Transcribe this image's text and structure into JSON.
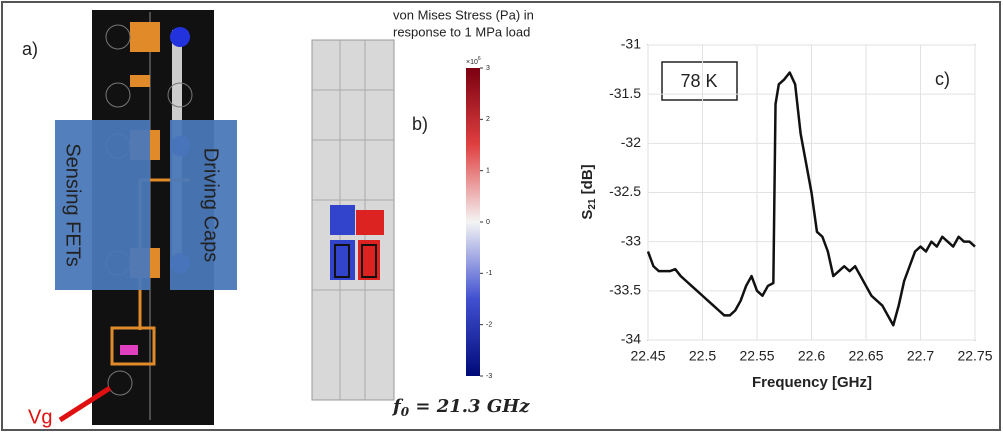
{
  "panel_a": {
    "label": "a)",
    "left_block": "Sensing FETs",
    "right_block": "Driving Caps",
    "pin": "Vg"
  },
  "panel_b": {
    "label": "b)",
    "title": [
      "von Mises Stress (Pa) in",
      "response to 1 MPa load"
    ],
    "formula": [
      "f",
      "0",
      " = 21.3 GHz"
    ],
    "colorbar": {
      "exponent": [
        "×10",
        "6"
      ],
      "lim": [
        -3,
        3
      ],
      "ticks": [
        3,
        2,
        1,
        0,
        -1,
        -2,
        -3
      ]
    }
  },
  "chart_data": {
    "type": "line",
    "panel_label": "c)",
    "annotation": "78 K",
    "x_label": "Frequency [GHz]",
    "y_label": [
      "S",
      "21",
      " [dB]"
    ],
    "xlim": [
      22.45,
      22.75
    ],
    "xticks": [
      22.45,
      22.5,
      22.55,
      22.6,
      22.65,
      22.7,
      22.75
    ],
    "ylim": [
      -34,
      -31
    ],
    "yticks": [
      -31,
      -31.5,
      -32,
      -32.5,
      -33,
      -33.5,
      -34
    ],
    "grid": true,
    "series": [
      {
        "color": "#111111",
        "x": [
          22.45,
          22.455,
          22.46,
          22.47,
          22.475,
          22.48,
          22.485,
          22.49,
          22.495,
          22.5,
          22.505,
          22.51,
          22.515,
          22.52,
          22.525,
          22.53,
          22.535,
          22.54,
          22.545,
          22.55,
          22.555,
          22.56,
          22.565,
          22.567,
          22.57,
          22.575,
          22.58,
          22.585,
          22.59,
          22.595,
          22.6,
          22.605,
          22.61,
          22.615,
          22.62,
          22.625,
          22.63,
          22.635,
          22.64,
          22.645,
          22.65,
          22.655,
          22.66,
          22.665,
          22.67,
          22.675,
          22.68,
          22.685,
          22.69,
          22.695,
          22.7,
          22.705,
          22.71,
          22.715,
          22.72,
          22.725,
          22.73,
          22.735,
          22.74,
          22.745,
          22.75
        ],
        "values": [
          -33.1,
          -33.25,
          -33.3,
          -33.3,
          -33.28,
          -33.35,
          -33.4,
          -33.45,
          -33.5,
          -33.55,
          -33.6,
          -33.65,
          -33.7,
          -33.75,
          -33.75,
          -33.7,
          -33.6,
          -33.45,
          -33.35,
          -33.5,
          -33.55,
          -33.45,
          -33.42,
          -31.6,
          -31.4,
          -31.35,
          -31.28,
          -31.4,
          -31.9,
          -32.2,
          -32.5,
          -32.9,
          -32.95,
          -33.1,
          -33.35,
          -33.3,
          -33.25,
          -33.3,
          -33.25,
          -33.35,
          -33.45,
          -33.55,
          -33.6,
          -33.65,
          -33.75,
          -33.85,
          -33.65,
          -33.4,
          -33.25,
          -33.1,
          -33.05,
          -33.1,
          -33.0,
          -33.05,
          -32.95,
          -33.0,
          -33.05,
          -32.95,
          -33.0,
          -33.0,
          -33.05
        ]
      }
    ]
  }
}
